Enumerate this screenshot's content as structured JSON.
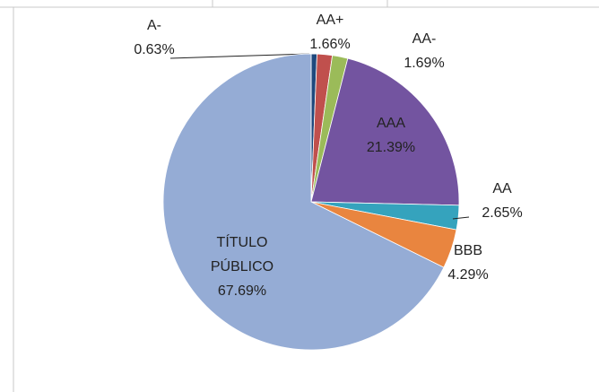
{
  "chart_data": {
    "type": "pie",
    "categories": [
      "A-",
      "AA+",
      "AA-",
      "AAA",
      "AA",
      "BBB",
      "TÍTULO PÚBLICO"
    ],
    "values": [
      0.63,
      1.66,
      1.69,
      21.39,
      2.65,
      4.29,
      67.69
    ],
    "value_labels": [
      "0.63%",
      "1.66%",
      "1.69%",
      "21.39%",
      "2.65%",
      "4.29%",
      "67.69%"
    ],
    "colors": [
      "#1f497d",
      "#c0504d",
      "#9bbb59",
      "#7354a0",
      "#35a3bd",
      "#e9853f",
      "#95acd5"
    ]
  }
}
